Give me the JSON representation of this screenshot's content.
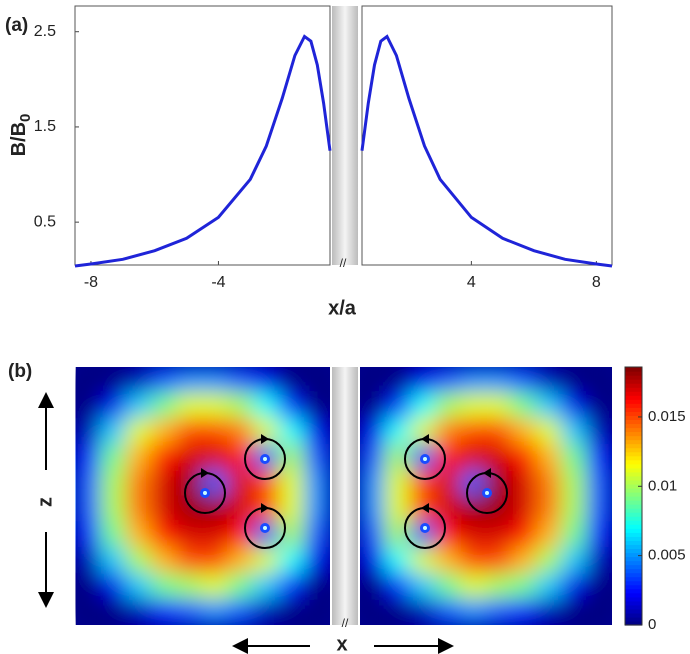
{
  "chart_data": [
    {
      "type": "line",
      "title": "(a)",
      "xlabel": "x/a",
      "ylabel": "B/B",
      "ylabel_sub": "0",
      "break_mark": "//",
      "ylim": [
        0.05,
        2.77
      ],
      "yticks": [
        0.5,
        1.5,
        2.5
      ],
      "panels": [
        {
          "xlim": [
            -8.5,
            -0.5
          ],
          "xticks": [
            -8,
            -4
          ],
          "series": [
            {
              "color": "#1f24d8",
              "x": [
                -8.5,
                -8,
                -7,
                -6,
                -5,
                -4,
                -3,
                -2.5,
                -2,
                -1.6,
                -1.3,
                -1.1,
                -0.9,
                -0.7,
                -0.5
              ],
              "values": [
                0.04,
                0.06,
                0.11,
                0.2,
                0.33,
                0.55,
                0.95,
                1.3,
                1.8,
                2.25,
                2.45,
                2.4,
                2.15,
                1.75,
                1.25
              ]
            }
          ]
        },
        {
          "xlim": [
            0.5,
            8.5
          ],
          "xticks": [
            4,
            8
          ],
          "series": [
            {
              "color": "#1f24d8",
              "x": [
                0.5,
                0.7,
                0.9,
                1.1,
                1.3,
                1.6,
                2,
                2.5,
                3,
                4,
                5,
                6,
                7,
                8,
                8.5
              ],
              "values": [
                1.25,
                1.75,
                2.15,
                2.4,
                2.45,
                2.25,
                1.8,
                1.3,
                0.95,
                0.55,
                0.33,
                0.2,
                0.11,
                0.06,
                0.04
              ]
            }
          ]
        }
      ]
    },
    {
      "type": "heatmap",
      "title": "(b)",
      "xlabel": "x",
      "ylabel": "z",
      "break_mark": "//",
      "clim": [
        0,
        0.0186
      ],
      "cticks": [
        0,
        0.005,
        0.01,
        0.015
      ],
      "panels": [
        {
          "values": [
            [
              0,
              0,
              0.001,
              0.004,
              0.005,
              0.005,
              0.004,
              0.002,
              0,
              0
            ],
            [
              0,
              0.002,
              0.006,
              0.009,
              0.011,
              0.011,
              0.01,
              0.007,
              0.003,
              0
            ],
            [
              0.001,
              0.006,
              0.011,
              0.013,
              0.015,
              0.015,
              0.014,
              0.011,
              0.007,
              0.002
            ],
            [
              0.003,
              0.009,
              0.013,
              0.016,
              0.017,
              0.017,
              0.016,
              0.004,
              0.01,
              0.004
            ],
            [
              0.004,
              0.01,
              0.014,
              0.017,
              0.018,
              0.004,
              0.017,
              0.015,
              0.011,
              0.005
            ],
            [
              0.004,
              0.01,
              0.014,
              0.017,
              0.018,
              0.018,
              0.017,
              0.015,
              0.011,
              0.005
            ],
            [
              0.003,
              0.009,
              0.013,
              0.016,
              0.017,
              0.017,
              0.016,
              0.004,
              0.01,
              0.004
            ],
            [
              0.001,
              0.006,
              0.01,
              0.013,
              0.015,
              0.015,
              0.013,
              0.011,
              0.007,
              0.002
            ],
            [
              0,
              0.002,
              0.006,
              0.009,
              0.01,
              0.011,
              0.009,
              0.006,
              0.003,
              0
            ],
            [
              0,
              0,
              0.001,
              0.003,
              0.004,
              0.005,
              0.004,
              0.001,
              0,
              0
            ]
          ]
        },
        {
          "values": [
            [
              0,
              0,
              0.002,
              0.004,
              0.005,
              0.005,
              0.004,
              0.001,
              0,
              0
            ],
            [
              0,
              0.003,
              0.007,
              0.01,
              0.011,
              0.011,
              0.009,
              0.006,
              0.002,
              0
            ],
            [
              0.002,
              0.007,
              0.011,
              0.014,
              0.015,
              0.015,
              0.013,
              0.011,
              0.006,
              0.001
            ],
            [
              0.004,
              0.01,
              0.004,
              0.016,
              0.017,
              0.017,
              0.016,
              0.013,
              0.009,
              0.003
            ],
            [
              0.005,
              0.011,
              0.015,
              0.017,
              0.004,
              0.018,
              0.017,
              0.014,
              0.01,
              0.004
            ],
            [
              0.005,
              0.011,
              0.015,
              0.017,
              0.018,
              0.018,
              0.017,
              0.014,
              0.01,
              0.004
            ],
            [
              0.004,
              0.01,
              0.004,
              0.016,
              0.017,
              0.017,
              0.016,
              0.013,
              0.009,
              0.003
            ],
            [
              0.002,
              0.007,
              0.011,
              0.013,
              0.015,
              0.015,
              0.013,
              0.01,
              0.006,
              0.001
            ],
            [
              0,
              0.003,
              0.006,
              0.009,
              0.011,
              0.01,
              0.009,
              0.006,
              0.002,
              0
            ],
            [
              0,
              0,
              0.001,
              0.004,
              0.005,
              0.004,
              0.003,
              0.001,
              0,
              0
            ]
          ]
        }
      ]
    }
  ]
}
